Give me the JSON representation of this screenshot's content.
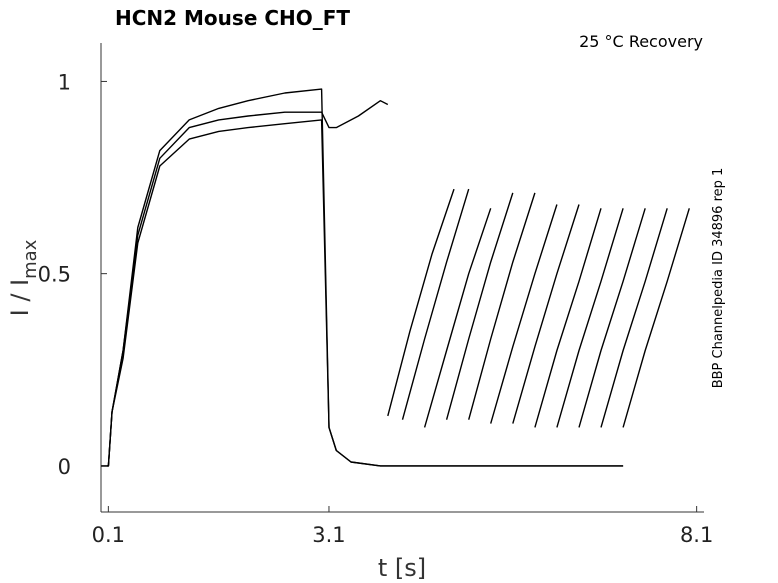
{
  "chart_data": {
    "type": "line",
    "title": "HCN2  Mouse  CHO_FT",
    "annotation": "25 °C  Recovery",
    "side_label": "BBP Channelpedia ID 34896 rep 1",
    "xlabel": "t [s]",
    "ylabel_main": "I / I",
    "ylabel_sub": "max",
    "xlim": [
      0.0,
      8.2
    ],
    "ylim": [
      -0.12,
      1.1
    ],
    "xticks": [
      0.1,
      3.1,
      8.1
    ],
    "xtick_labels": [
      "0.1",
      "3.1",
      "8.1"
    ],
    "yticks": [
      0,
      0.5,
      1
    ],
    "ytick_labels": [
      "0",
      "0.5",
      "1"
    ],
    "grid": false,
    "line_color": "#000000",
    "series": [
      {
        "x": [
          0.0,
          0.1,
          0.15,
          0.3,
          0.5,
          0.8,
          1.2,
          1.6,
          2.0,
          2.5,
          3.0,
          3.1,
          3.2,
          3.4,
          3.8,
          4.5,
          5.5,
          6.5,
          7.1
        ],
        "y": [
          0.0,
          0.0,
          0.14,
          0.3,
          0.62,
          0.82,
          0.9,
          0.93,
          0.95,
          0.97,
          0.98,
          0.1,
          0.04,
          0.01,
          0.0,
          0.0,
          0.0,
          0.0,
          0.0
        ]
      },
      {
        "x": [
          0.0,
          0.1,
          0.15,
          0.3,
          0.5,
          0.8,
          1.2,
          1.6,
          2.0,
          2.5,
          3.0,
          3.1,
          3.2,
          3.4,
          3.8,
          4.5,
          5.5,
          6.5,
          7.1
        ],
        "y": [
          0.0,
          0.0,
          0.14,
          0.28,
          0.58,
          0.78,
          0.85,
          0.87,
          0.88,
          0.89,
          0.9,
          0.1,
          0.04,
          0.01,
          0.0,
          0.0,
          0.0,
          0.0,
          0.0
        ]
      },
      {
        "x": [
          0.0,
          0.1,
          0.15,
          0.3,
          0.5,
          0.8,
          1.2,
          1.6,
          2.0,
          2.5,
          3.0,
          3.1,
          3.2,
          3.5,
          3.8,
          3.9
        ],
        "y": [
          0.0,
          0.0,
          0.14,
          0.3,
          0.6,
          0.8,
          0.88,
          0.9,
          0.91,
          0.92,
          0.92,
          0.88,
          0.88,
          0.91,
          0.95,
          0.94
        ]
      },
      {
        "x": [
          3.9,
          4.2,
          4.5,
          4.8
        ],
        "y": [
          0.13,
          0.35,
          0.55,
          0.72
        ]
      },
      {
        "x": [
          4.1,
          4.4,
          4.7,
          5.0
        ],
        "y": [
          0.12,
          0.33,
          0.53,
          0.72
        ]
      },
      {
        "x": [
          4.4,
          4.7,
          5.0,
          5.3
        ],
        "y": [
          0.1,
          0.3,
          0.5,
          0.67
        ]
      },
      {
        "x": [
          4.7,
          5.0,
          5.3,
          5.6
        ],
        "y": [
          0.12,
          0.33,
          0.53,
          0.71
        ]
      },
      {
        "x": [
          5.0,
          5.3,
          5.6,
          5.9
        ],
        "y": [
          0.12,
          0.33,
          0.53,
          0.71
        ]
      },
      {
        "x": [
          5.3,
          5.6,
          5.9,
          6.2
        ],
        "y": [
          0.11,
          0.31,
          0.5,
          0.68
        ]
      },
      {
        "x": [
          5.6,
          5.9,
          6.2,
          6.5
        ],
        "y": [
          0.11,
          0.31,
          0.5,
          0.68
        ]
      },
      {
        "x": [
          5.9,
          6.2,
          6.5,
          6.8
        ],
        "y": [
          0.1,
          0.3,
          0.48,
          0.67
        ]
      },
      {
        "x": [
          6.2,
          6.5,
          6.8,
          7.1
        ],
        "y": [
          0.1,
          0.3,
          0.48,
          0.67
        ]
      },
      {
        "x": [
          6.5,
          6.8,
          7.1,
          7.4
        ],
        "y": [
          0.1,
          0.3,
          0.48,
          0.67
        ]
      },
      {
        "x": [
          6.8,
          7.1,
          7.4,
          7.7
        ],
        "y": [
          0.1,
          0.3,
          0.48,
          0.67
        ]
      },
      {
        "x": [
          7.1,
          7.4,
          7.7,
          8.0
        ],
        "y": [
          0.1,
          0.3,
          0.48,
          0.67
        ]
      }
    ]
  }
}
